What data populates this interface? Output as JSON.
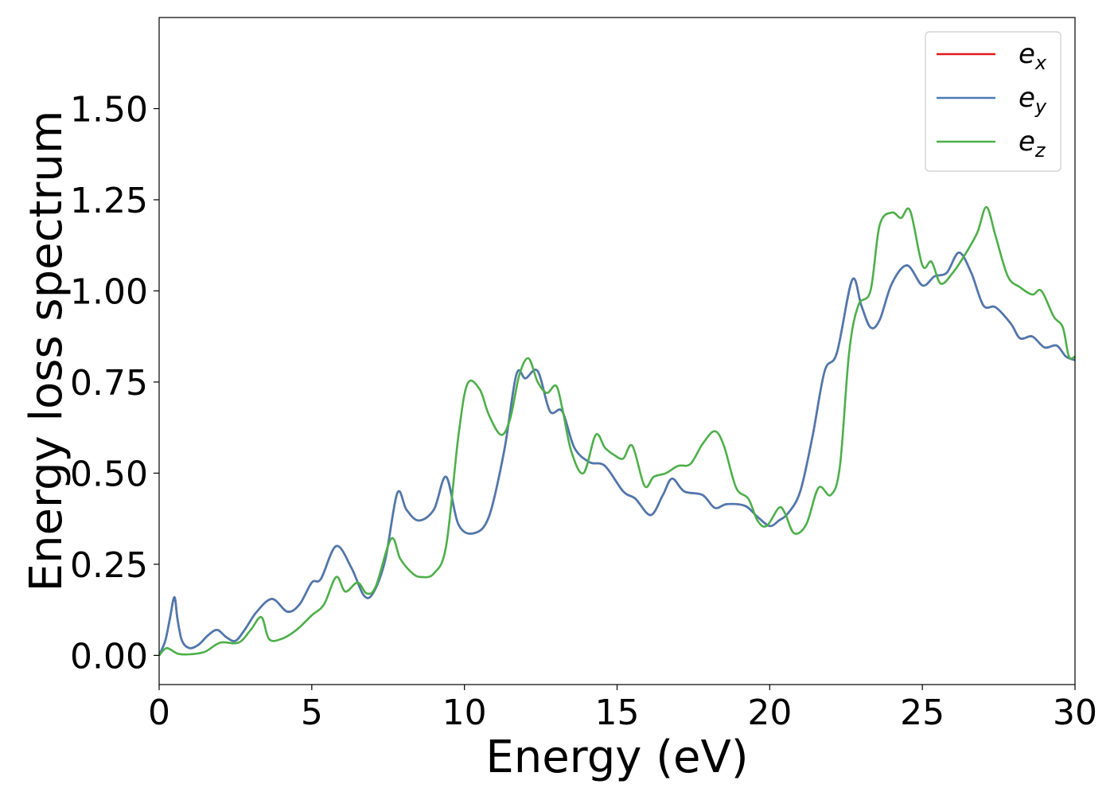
{
  "chart_data": {
    "type": "line",
    "title": "",
    "xlabel": "Energy (eV)",
    "ylabel": "Energy loss spectrum",
    "xlim": [
      0,
      30
    ],
    "ylim": [
      -0.08,
      1.75
    ],
    "xticks": [
      0,
      5,
      10,
      15,
      20,
      25,
      30
    ],
    "xtick_labels": [
      "0",
      "5",
      "10",
      "15",
      "20",
      "25",
      "30"
    ],
    "yticks": [
      0,
      0.25,
      0.5,
      0.75,
      1.0,
      1.25,
      1.5
    ],
    "ytick_labels": [
      "0.00",
      "0.25",
      "0.50",
      "0.75",
      "1.00",
      "1.25",
      "1.50"
    ],
    "grid": false,
    "legend_position": "top-right",
    "series": [
      {
        "name": "e",
        "subscript": "x",
        "color": "#e41a1c",
        "points": [
          [
            0,
            0
          ],
          [
            0.2,
            0.04
          ],
          [
            0.35,
            0.1
          ],
          [
            0.5,
            0.16
          ],
          [
            0.6,
            0.1
          ],
          [
            0.75,
            0.04
          ],
          [
            1.0,
            0.02
          ],
          [
            1.3,
            0.03
          ],
          [
            1.6,
            0.055
          ],
          [
            1.9,
            0.07
          ],
          [
            2.2,
            0.05
          ],
          [
            2.5,
            0.04
          ],
          [
            2.8,
            0.07
          ],
          [
            3.2,
            0.12
          ],
          [
            3.7,
            0.155
          ],
          [
            4.2,
            0.12
          ],
          [
            4.6,
            0.14
          ],
          [
            5.0,
            0.2
          ],
          [
            5.3,
            0.21
          ],
          [
            5.8,
            0.3
          ],
          [
            6.3,
            0.24
          ],
          [
            6.7,
            0.165
          ],
          [
            7.0,
            0.17
          ],
          [
            7.4,
            0.26
          ],
          [
            7.8,
            0.445
          ],
          [
            8.1,
            0.4
          ],
          [
            8.5,
            0.37
          ],
          [
            9.0,
            0.4
          ],
          [
            9.4,
            0.49
          ],
          [
            9.8,
            0.36
          ],
          [
            10.3,
            0.335
          ],
          [
            10.8,
            0.38
          ],
          [
            11.3,
            0.56
          ],
          [
            11.7,
            0.77
          ],
          [
            12.0,
            0.76
          ],
          [
            12.4,
            0.78
          ],
          [
            12.8,
            0.67
          ],
          [
            13.2,
            0.67
          ],
          [
            13.6,
            0.57
          ],
          [
            14.1,
            0.53
          ],
          [
            14.6,
            0.52
          ],
          [
            15.2,
            0.45
          ],
          [
            15.6,
            0.43
          ],
          [
            16.1,
            0.385
          ],
          [
            16.5,
            0.44
          ],
          [
            16.8,
            0.485
          ],
          [
            17.2,
            0.45
          ],
          [
            17.8,
            0.44
          ],
          [
            18.2,
            0.405
          ],
          [
            18.6,
            0.415
          ],
          [
            19.2,
            0.41
          ],
          [
            19.6,
            0.38
          ],
          [
            20.0,
            0.355
          ],
          [
            20.3,
            0.37
          ],
          [
            20.6,
            0.39
          ],
          [
            21.0,
            0.45
          ],
          [
            21.4,
            0.6
          ],
          [
            21.8,
            0.78
          ],
          [
            22.2,
            0.83
          ],
          [
            22.7,
            1.03
          ],
          [
            23.0,
            0.96
          ],
          [
            23.3,
            0.9
          ],
          [
            23.6,
            0.92
          ],
          [
            24.0,
            1.02
          ],
          [
            24.5,
            1.07
          ],
          [
            25.0,
            1.015
          ],
          [
            25.4,
            1.04
          ],
          [
            25.8,
            1.05
          ],
          [
            26.2,
            1.105
          ],
          [
            26.6,
            1.05
          ],
          [
            27.0,
            0.96
          ],
          [
            27.4,
            0.955
          ],
          [
            27.9,
            0.91
          ],
          [
            28.2,
            0.87
          ],
          [
            28.6,
            0.875
          ],
          [
            29.0,
            0.845
          ],
          [
            29.4,
            0.85
          ],
          [
            29.7,
            0.82
          ],
          [
            30.0,
            0.81
          ]
        ]
      },
      {
        "name": "e",
        "subscript": "y",
        "color": "#4a7ab0",
        "points": [
          [
            0,
            0
          ],
          [
            0.2,
            0.04
          ],
          [
            0.35,
            0.1
          ],
          [
            0.5,
            0.16
          ],
          [
            0.6,
            0.1
          ],
          [
            0.75,
            0.04
          ],
          [
            1.0,
            0.02
          ],
          [
            1.3,
            0.03
          ],
          [
            1.6,
            0.055
          ],
          [
            1.9,
            0.07
          ],
          [
            2.2,
            0.05
          ],
          [
            2.5,
            0.04
          ],
          [
            2.8,
            0.07
          ],
          [
            3.2,
            0.12
          ],
          [
            3.7,
            0.155
          ],
          [
            4.2,
            0.12
          ],
          [
            4.6,
            0.14
          ],
          [
            5.0,
            0.2
          ],
          [
            5.3,
            0.21
          ],
          [
            5.8,
            0.3
          ],
          [
            6.3,
            0.24
          ],
          [
            6.7,
            0.165
          ],
          [
            7.0,
            0.17
          ],
          [
            7.4,
            0.26
          ],
          [
            7.8,
            0.445
          ],
          [
            8.1,
            0.4
          ],
          [
            8.5,
            0.37
          ],
          [
            9.0,
            0.4
          ],
          [
            9.4,
            0.49
          ],
          [
            9.8,
            0.36
          ],
          [
            10.3,
            0.335
          ],
          [
            10.8,
            0.38
          ],
          [
            11.3,
            0.56
          ],
          [
            11.7,
            0.77
          ],
          [
            12.0,
            0.76
          ],
          [
            12.4,
            0.78
          ],
          [
            12.8,
            0.67
          ],
          [
            13.2,
            0.67
          ],
          [
            13.6,
            0.57
          ],
          [
            14.1,
            0.53
          ],
          [
            14.6,
            0.52
          ],
          [
            15.2,
            0.45
          ],
          [
            15.6,
            0.43
          ],
          [
            16.1,
            0.385
          ],
          [
            16.5,
            0.44
          ],
          [
            16.8,
            0.485
          ],
          [
            17.2,
            0.45
          ],
          [
            17.8,
            0.44
          ],
          [
            18.2,
            0.405
          ],
          [
            18.6,
            0.415
          ],
          [
            19.2,
            0.41
          ],
          [
            19.6,
            0.38
          ],
          [
            20.0,
            0.355
          ],
          [
            20.3,
            0.37
          ],
          [
            20.6,
            0.39
          ],
          [
            21.0,
            0.45
          ],
          [
            21.4,
            0.6
          ],
          [
            21.8,
            0.78
          ],
          [
            22.2,
            0.83
          ],
          [
            22.7,
            1.03
          ],
          [
            23.0,
            0.96
          ],
          [
            23.3,
            0.9
          ],
          [
            23.6,
            0.92
          ],
          [
            24.0,
            1.02
          ],
          [
            24.5,
            1.07
          ],
          [
            25.0,
            1.015
          ],
          [
            25.4,
            1.04
          ],
          [
            25.8,
            1.05
          ],
          [
            26.2,
            1.105
          ],
          [
            26.6,
            1.05
          ],
          [
            27.0,
            0.96
          ],
          [
            27.4,
            0.955
          ],
          [
            27.9,
            0.91
          ],
          [
            28.2,
            0.87
          ],
          [
            28.6,
            0.875
          ],
          [
            29.0,
            0.845
          ],
          [
            29.4,
            0.85
          ],
          [
            29.7,
            0.82
          ],
          [
            30.0,
            0.81
          ]
        ]
      },
      {
        "name": "e",
        "subscript": "z",
        "color": "#4daf4a",
        "points": [
          [
            0,
            0
          ],
          [
            0.25,
            0.02
          ],
          [
            0.6,
            0.005
          ],
          [
            1.0,
            0.003
          ],
          [
            1.5,
            0.01
          ],
          [
            2.0,
            0.035
          ],
          [
            2.6,
            0.035
          ],
          [
            3.0,
            0.07
          ],
          [
            3.35,
            0.105
          ],
          [
            3.6,
            0.045
          ],
          [
            4.0,
            0.045
          ],
          [
            4.5,
            0.07
          ],
          [
            5.0,
            0.11
          ],
          [
            5.4,
            0.14
          ],
          [
            5.8,
            0.215
          ],
          [
            6.1,
            0.175
          ],
          [
            6.5,
            0.2
          ],
          [
            6.8,
            0.17
          ],
          [
            7.1,
            0.19
          ],
          [
            7.6,
            0.32
          ],
          [
            7.9,
            0.265
          ],
          [
            8.3,
            0.225
          ],
          [
            8.6,
            0.215
          ],
          [
            9.0,
            0.225
          ],
          [
            9.4,
            0.3
          ],
          [
            9.8,
            0.6
          ],
          [
            10.1,
            0.745
          ],
          [
            10.5,
            0.73
          ],
          [
            10.8,
            0.66
          ],
          [
            11.2,
            0.605
          ],
          [
            11.5,
            0.65
          ],
          [
            11.8,
            0.77
          ],
          [
            12.1,
            0.815
          ],
          [
            12.4,
            0.75
          ],
          [
            12.7,
            0.72
          ],
          [
            13.0,
            0.74
          ],
          [
            13.2,
            0.68
          ],
          [
            13.5,
            0.56
          ],
          [
            13.9,
            0.5
          ],
          [
            14.3,
            0.605
          ],
          [
            14.6,
            0.57
          ],
          [
            14.9,
            0.55
          ],
          [
            15.2,
            0.54
          ],
          [
            15.5,
            0.575
          ],
          [
            15.9,
            0.465
          ],
          [
            16.2,
            0.49
          ],
          [
            16.6,
            0.5
          ],
          [
            17.0,
            0.52
          ],
          [
            17.4,
            0.525
          ],
          [
            17.8,
            0.58
          ],
          [
            18.2,
            0.615
          ],
          [
            18.5,
            0.575
          ],
          [
            18.9,
            0.46
          ],
          [
            19.3,
            0.43
          ],
          [
            19.6,
            0.37
          ],
          [
            19.9,
            0.355
          ],
          [
            20.3,
            0.405
          ],
          [
            20.5,
            0.39
          ],
          [
            20.8,
            0.335
          ],
          [
            21.2,
            0.36
          ],
          [
            21.6,
            0.46
          ],
          [
            22.0,
            0.44
          ],
          [
            22.3,
            0.52
          ],
          [
            22.6,
            0.83
          ],
          [
            22.9,
            0.96
          ],
          [
            23.3,
            1.0
          ],
          [
            23.6,
            1.18
          ],
          [
            24.0,
            1.215
          ],
          [
            24.3,
            1.2
          ],
          [
            24.6,
            1.22
          ],
          [
            25.0,
            1.07
          ],
          [
            25.3,
            1.08
          ],
          [
            25.6,
            1.02
          ],
          [
            26.0,
            1.05
          ],
          [
            26.4,
            1.1
          ],
          [
            26.8,
            1.16
          ],
          [
            27.1,
            1.23
          ],
          [
            27.4,
            1.15
          ],
          [
            27.8,
            1.04
          ],
          [
            28.2,
            1.01
          ],
          [
            28.6,
            0.99
          ],
          [
            28.9,
            1.0
          ],
          [
            29.3,
            0.93
          ],
          [
            29.6,
            0.9
          ],
          [
            29.8,
            0.82
          ],
          [
            30.0,
            0.82
          ]
        ]
      }
    ]
  }
}
